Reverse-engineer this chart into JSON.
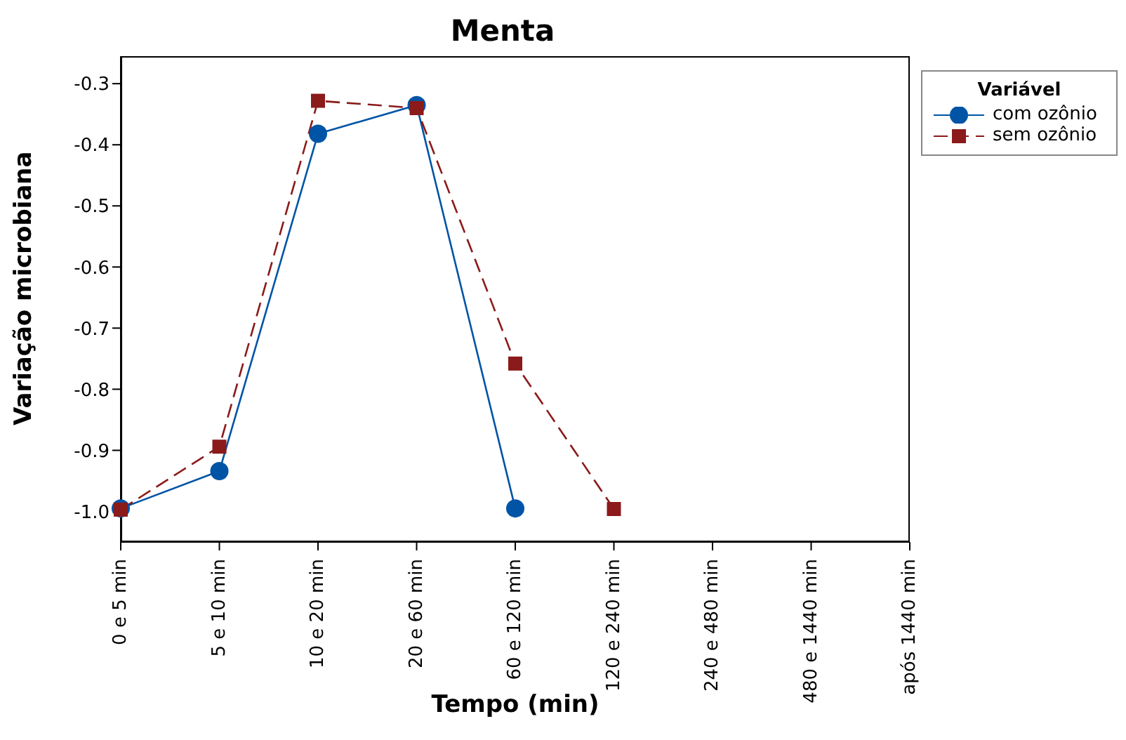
{
  "chart_data": {
    "type": "line",
    "title": "Menta",
    "xlabel": "Tempo (min)",
    "ylabel": "Variação microbiana",
    "legend_title": "Variável",
    "legend": "top right",
    "grid": false,
    "categories": [
      "0 e 5 min",
      "5 e 10 min",
      "10 e 20 min",
      "20 e 60 min",
      "60 e 120 min",
      "120 e 240 min",
      "240 e 480 min",
      "480 e 1440 min",
      "após 1440 min"
    ],
    "ylim": [
      -1.05,
      -0.255
    ],
    "yticks": [
      {
        "value": -1,
        "label": "-1.0"
      },
      -0.9,
      -0.8,
      -0.7,
      -0.6,
      -0.5,
      -0.4,
      -0.3
    ],
    "series": [
      {
        "name": "com ozônio",
        "color": "#0054a6",
        "marker": "circle",
        "line_style": "solid",
        "values": [
          -0.995,
          -0.934,
          -0.382,
          -0.335,
          -0.995,
          null,
          null,
          null,
          null
        ]
      },
      {
        "name": "sem ozônio",
        "color": "#8b1a1a",
        "marker": "square",
        "line_style": "dashed",
        "values": [
          -0.997,
          -0.894,
          -0.328,
          -0.34,
          -0.758,
          -0.996,
          null,
          null,
          null
        ]
      }
    ]
  }
}
